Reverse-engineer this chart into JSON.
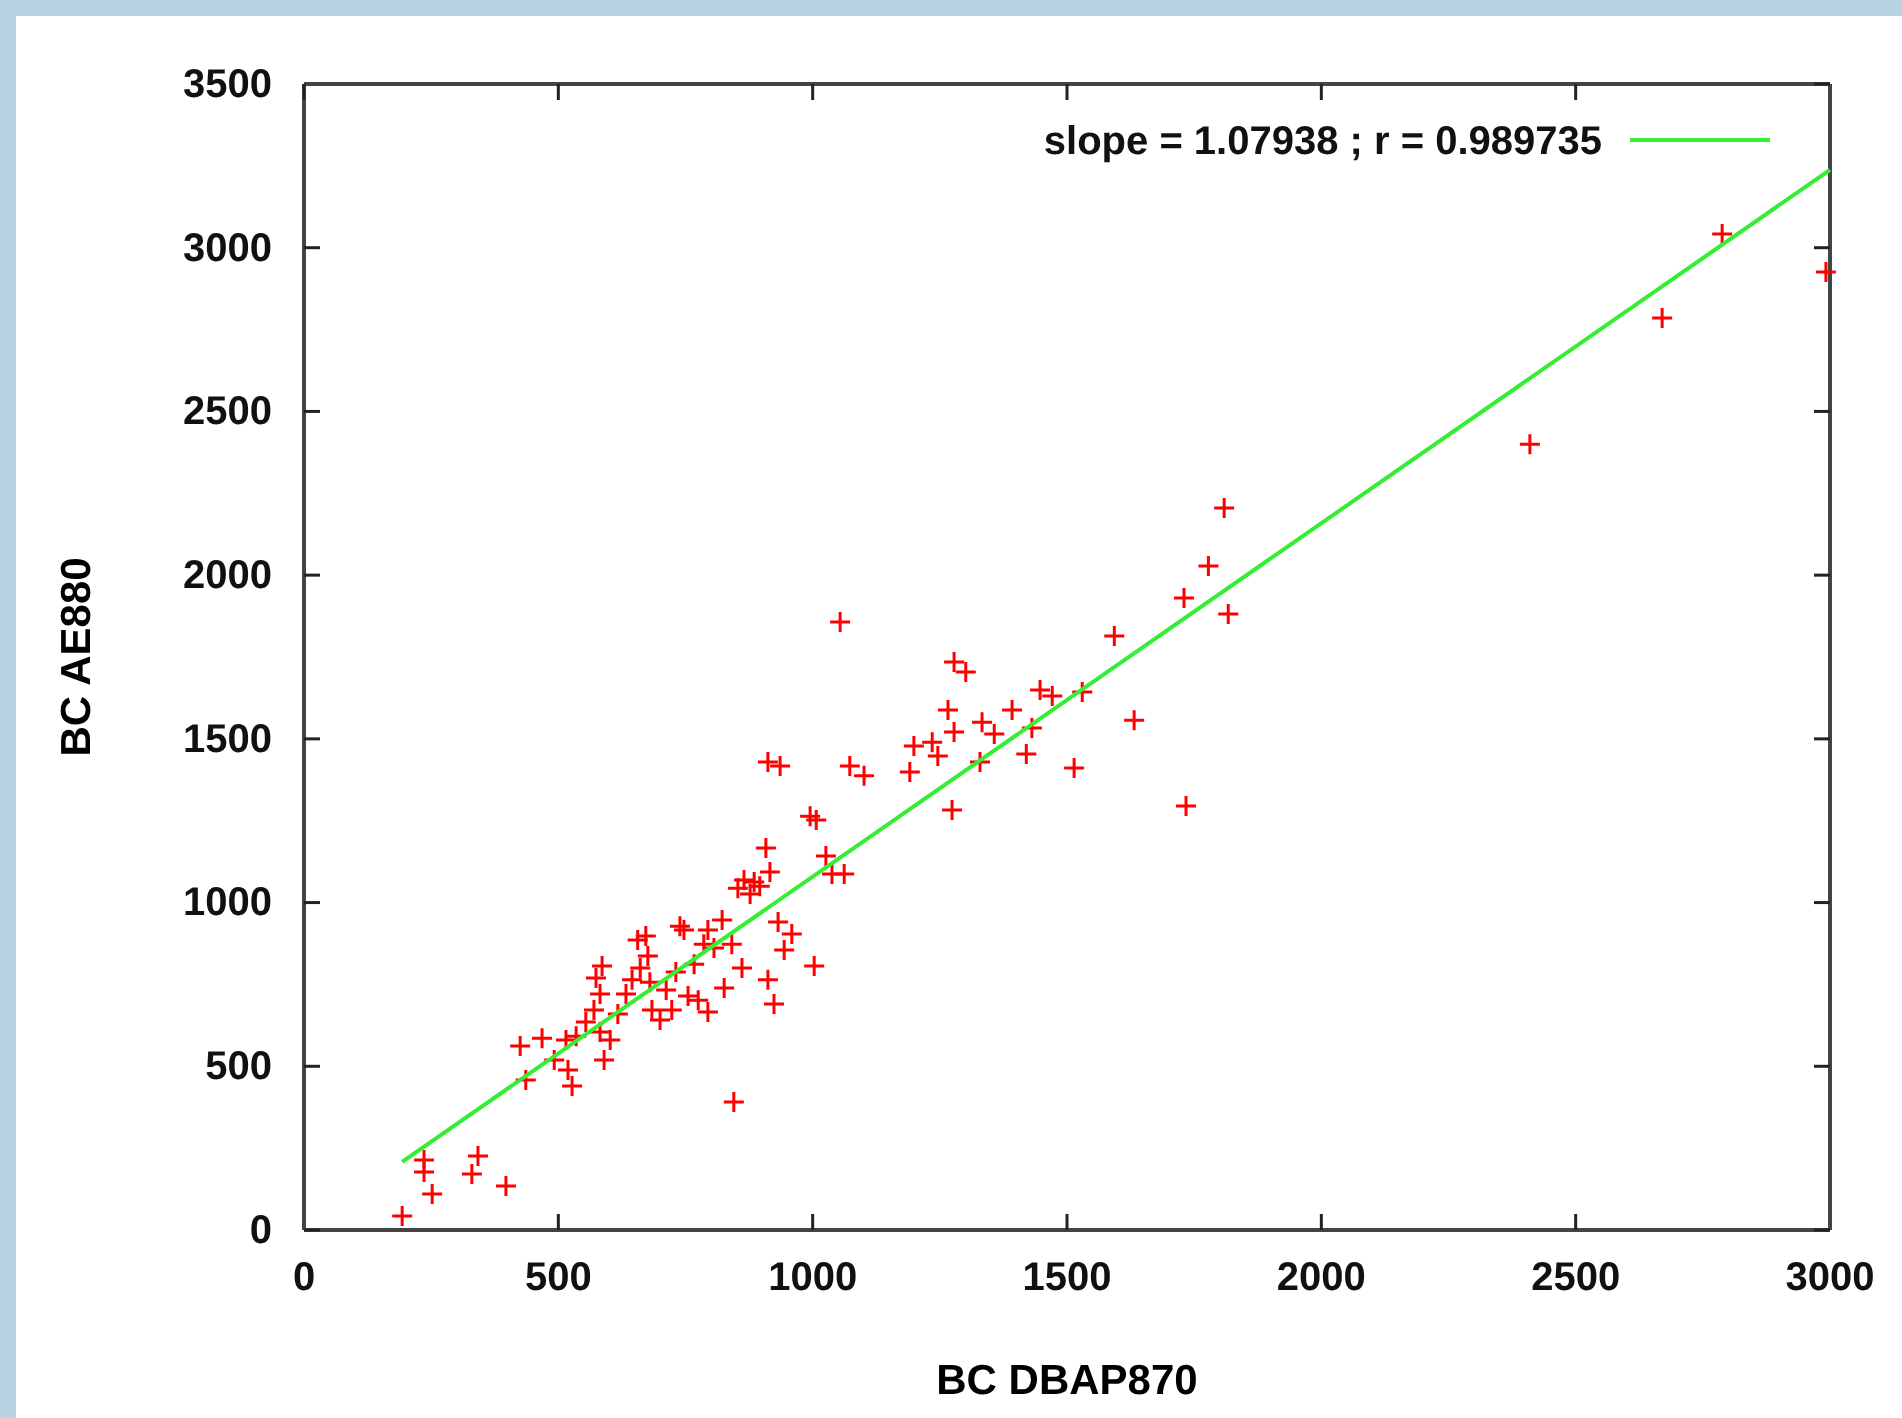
{
  "chart_data": {
    "type": "scatter",
    "xlabel": "BC DBAP870",
    "ylabel": "BC AE880",
    "xlim": [
      0,
      3000
    ],
    "ylim": [
      0,
      3500
    ],
    "xticks": [
      0,
      500,
      1000,
      1500,
      2000,
      2500,
      3000
    ],
    "yticks": [
      0,
      500,
      1000,
      1500,
      2000,
      2500,
      3000,
      3500
    ],
    "grid": false,
    "legend": "top right",
    "marker": "cross",
    "series": [
      {
        "color": "#ff0000",
        "x": [
          193,
          236,
          236,
          252,
          342,
          330,
          397,
          425,
          436,
          468,
          492,
          515,
          535,
          527,
          519,
          554,
          570,
          582,
          582,
          590,
          574,
          586,
          602,
          617,
          633,
          645,
          661,
          656,
          672,
          676,
          680,
          684,
          700,
          712,
          723,
          731,
          739,
          747,
          755,
          767,
          775,
          786,
          794,
          794,
          806,
          822,
          826,
          841,
          853,
          861,
          865,
          877,
          885,
          896,
          908,
          916,
          912,
          936,
          912,
          924,
          932,
          959,
          944,
          845,
          995,
          1007,
          1003,
          1026,
          1038,
          1062,
          1054,
          1073,
          1101,
          1191,
          1199,
          1235,
          1246,
          1266,
          1278,
          1274,
          1278,
          1301,
          1329,
          1333,
          1357,
          1392,
          1420,
          1431,
          1447,
          1471,
          1514,
          1530,
          1593,
          1632,
          1734,
          1730,
          1778,
          1809,
          1817,
          2410,
          2670,
          2788,
          2992
        ],
        "values": [
          43,
          214,
          177,
          110,
          226,
          171,
          134,
          562,
          458,
          586,
          519,
          580,
          592,
          440,
          489,
          635,
          672,
          721,
          605,
          519,
          770,
          806,
          580,
          660,
          721,
          764,
          800,
          886,
          898,
          837,
          757,
          672,
          641,
          733,
          672,
          788,
          928,
          916,
          715,
          812,
          702,
          873,
          916,
          666,
          861,
          947,
          739,
          873,
          1044,
          800,
          1069,
          1026,
          1063,
          1050,
          1167,
          1093,
          1429,
          1417,
          764,
          690,
          941,
          904,
          855,
          391,
          1264,
          1252,
          806,
          1142,
          1087,
          1087,
          1857,
          1417,
          1387,
          1399,
          1478,
          1490,
          1448,
          1588,
          1521,
          1283,
          1735,
          1704,
          1429,
          1551,
          1515,
          1588,
          1454,
          1533,
          1649,
          1631,
          1411,
          1643,
          1814,
          1557,
          1295,
          1930,
          2028,
          2205,
          1881,
          2400,
          2785,
          3042,
          2926
        ]
      },
      {
        "type": "line",
        "name": "slope = 1.07938 ; r = 0.989735",
        "color": "#33ee33",
        "marker": "none",
        "line_style": "solid",
        "x": [
          193,
          3000
        ],
        "values": [
          208,
          3238
        ]
      }
    ]
  }
}
